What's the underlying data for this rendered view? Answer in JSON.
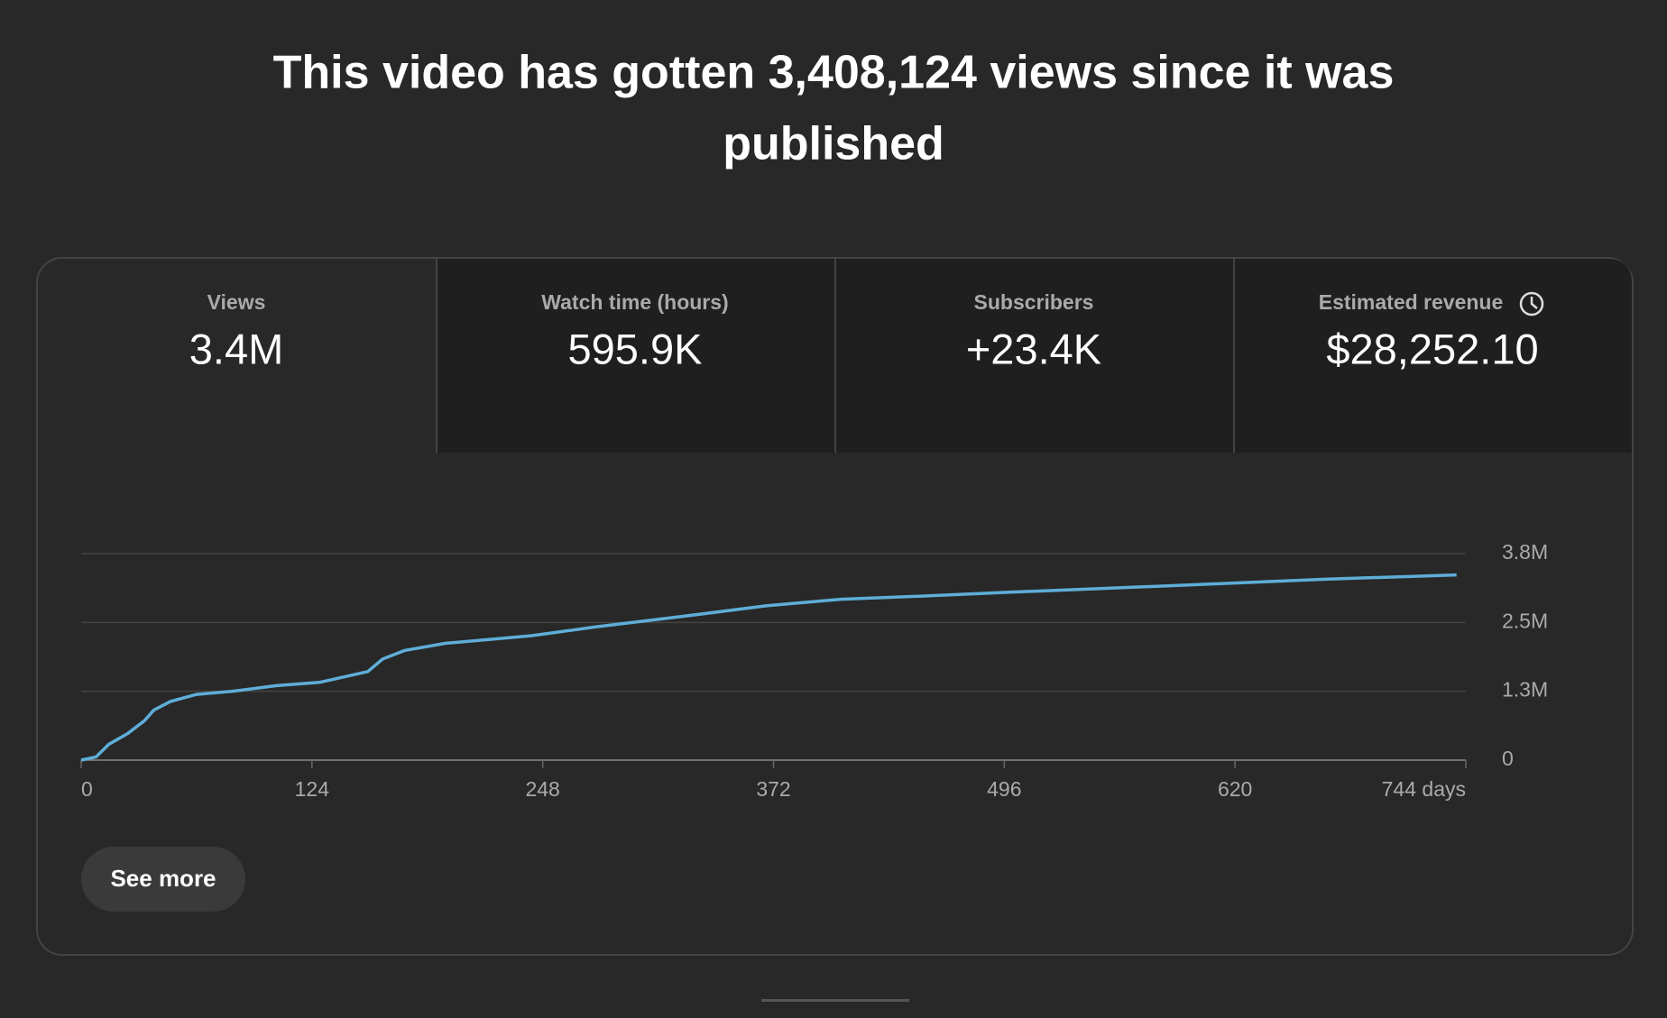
{
  "header": {
    "title_lines": [
      "This video has gotten 3,408,124 views since it was",
      "published"
    ]
  },
  "metrics": [
    {
      "label": "Views",
      "value": "3.4M"
    },
    {
      "label": "Watch time (hours)",
      "value": "595.9K"
    },
    {
      "label": "Subscribers",
      "value": "+23.4K"
    },
    {
      "label": "Estimated revenue",
      "value": "$28,252.10"
    }
  ],
  "chart_data": {
    "type": "line",
    "color": "#5eaed8",
    "x": [
      0,
      8,
      15,
      25,
      34,
      39,
      48,
      62,
      82,
      105,
      128,
      154,
      162,
      174,
      196,
      242,
      276,
      322,
      368,
      408,
      453,
      499,
      585,
      670,
      739
    ],
    "values": [
      0,
      59000,
      294000,
      490000,
      725000,
      920000,
      1080000,
      1210000,
      1270000,
      1370000,
      1430000,
      1630000,
      1860000,
      2020000,
      2150000,
      2290000,
      2450000,
      2640000,
      2840000,
      2960000,
      3020000,
      3090000,
      3210000,
      3330000,
      3408124
    ],
    "xlim": [
      0,
      744
    ],
    "xticks": [
      0,
      124,
      248,
      372,
      496,
      620,
      {
        "value": 744,
        "label": "744 days"
      }
    ],
    "ylim": [
      0,
      3800000
    ],
    "yticks": [
      0,
      {
        "value": 1266667,
        "label": "1.3M"
      },
      {
        "value": 2533333,
        "label": "2.5M"
      },
      {
        "value": 3800000,
        "label": "3.8M"
      }
    ],
    "grid": true
  },
  "button": {
    "label": "See more"
  }
}
